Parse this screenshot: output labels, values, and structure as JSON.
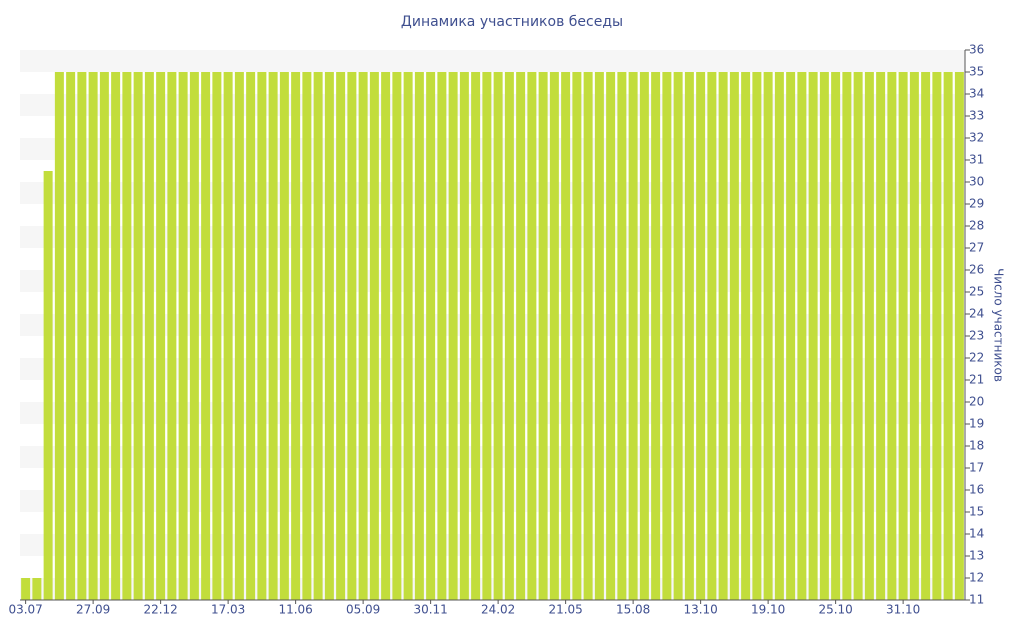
{
  "chart_data": {
    "type": "bar",
    "title": "Динамика участников беседы",
    "y_axis_label": "Число участников",
    "color": "#c2dd3c",
    "categories": [
      "03.07",
      null,
      null,
      null,
      null,
      null,
      "27.09",
      null,
      null,
      null,
      null,
      null,
      "22.12",
      null,
      null,
      null,
      null,
      null,
      "17.03",
      null,
      null,
      null,
      null,
      null,
      "11.06",
      null,
      null,
      null,
      null,
      null,
      "05.09",
      null,
      null,
      null,
      null,
      null,
      "30.11",
      null,
      null,
      null,
      null,
      null,
      "24.02",
      null,
      null,
      null,
      null,
      null,
      "21.05",
      null,
      null,
      null,
      null,
      null,
      "15.08",
      null,
      null,
      null,
      null,
      null,
      "13.10",
      null,
      null,
      null,
      null,
      null,
      "19.10",
      null,
      null,
      null,
      null,
      null,
      "25.10",
      null,
      null,
      null,
      null,
      null,
      "31.10",
      null,
      null,
      null,
      null,
      null
    ],
    "values": [
      12,
      12,
      30.5,
      35,
      35,
      35,
      35,
      35,
      35,
      35,
      35,
      35,
      35,
      35,
      35,
      35,
      35,
      35,
      35,
      35,
      35,
      35,
      35,
      35,
      35,
      35,
      35,
      35,
      35,
      35,
      35,
      35,
      35,
      35,
      35,
      35,
      35,
      35,
      35,
      35,
      35,
      35,
      35,
      35,
      35,
      35,
      35,
      35,
      35,
      35,
      35,
      35,
      35,
      35,
      35,
      35,
      35,
      35,
      35,
      35,
      35,
      35,
      35,
      35,
      35,
      35,
      35,
      35,
      35,
      35,
      35,
      35,
      35,
      35,
      35,
      35,
      35,
      35,
      35,
      35,
      35,
      35,
      35,
      35
    ],
    "ylim": [
      11,
      36
    ],
    "yticks": [
      11,
      12,
      13,
      14,
      15,
      16,
      17,
      18,
      19,
      20,
      21,
      22,
      23,
      24,
      25,
      26,
      27,
      28,
      29,
      30,
      31,
      32,
      33,
      34,
      35,
      36
    ],
    "grid": true
  }
}
